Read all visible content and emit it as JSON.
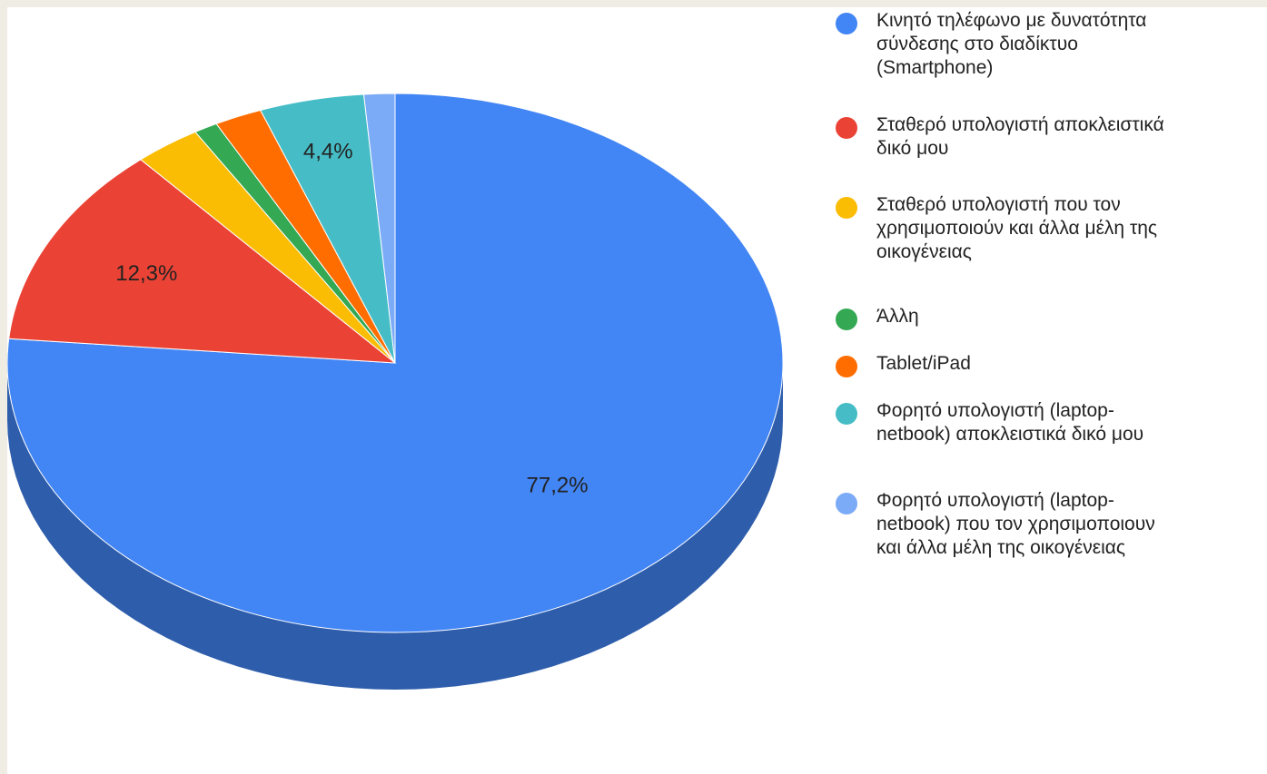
{
  "chart_data": {
    "type": "pie",
    "style": "3d",
    "legend_position": "right",
    "slices": [
      {
        "label": "Κινητό τηλέφωνο με δυνατότητα\nσύνδεσης στο διαδίκτυο\n(Smartphone)",
        "value": 77.2,
        "value_label": "77,2%",
        "color": "#4285f4"
      },
      {
        "label": "Σταθερό υπολογιστή αποκλειστικά\nδικό μου",
        "value": 12.3,
        "value_label": "12,3%",
        "color": "#ea4335"
      },
      {
        "label": "Σταθερό υπολογιστή που τον\nχρησιμοποιούν και άλλα μέλη της\nοικογένειας",
        "value": 2.8,
        "value_label": "",
        "color": "#fbbc04"
      },
      {
        "label": "Άλλη",
        "value": 1.0,
        "value_label": "",
        "color": "#34a853"
      },
      {
        "label": "Tablet/iPad",
        "value": 2.0,
        "value_label": "",
        "color": "#ff6d01"
      },
      {
        "label": "Φορητό υπολογιστή (laptop-\nnetbook) αποκλειστικά δικό μου",
        "value": 4.4,
        "value_label": "4,4%",
        "color": "#46bdc6"
      },
      {
        "label": "Φορητό υπολογιστή (laptop-\nnetbook) που τον χρησιμοποιουν\nκαι άλλα μέλη της οικογένειας",
        "value": 1.3,
        "value_label": "",
        "color": "#7baaf7"
      }
    ]
  }
}
